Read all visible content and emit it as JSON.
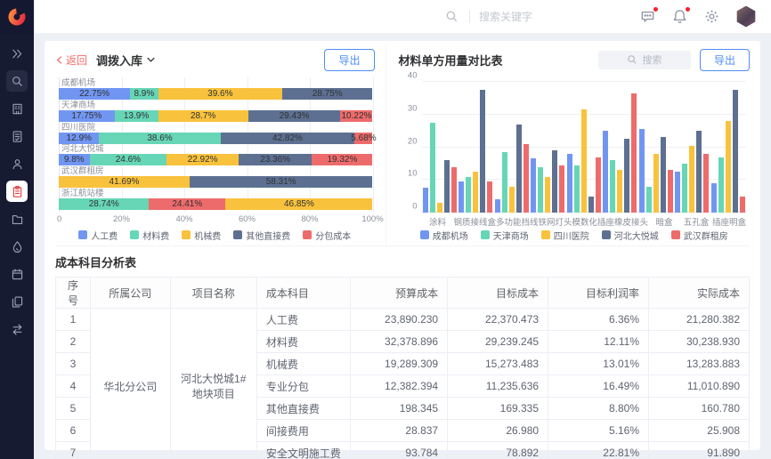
{
  "topbar": {
    "search_placeholder": "搜索关键字"
  },
  "sidebar": {
    "items": [
      {
        "name": "expand",
        "icon": "double-chevron-icon",
        "boxed": false,
        "active": false
      },
      {
        "name": "search",
        "icon": "search-icon",
        "boxed": true,
        "active": false
      },
      {
        "name": "company",
        "icon": "building-icon",
        "boxed": false,
        "active": false
      },
      {
        "name": "report",
        "icon": "document-icon",
        "boxed": false,
        "active": false
      },
      {
        "name": "member",
        "icon": "user-icon",
        "boxed": false,
        "active": false
      },
      {
        "name": "cost",
        "icon": "clipboard-icon",
        "boxed": false,
        "active": true
      },
      {
        "name": "folder",
        "icon": "folder-icon",
        "boxed": false,
        "active": false
      },
      {
        "name": "material",
        "icon": "drop-icon",
        "boxed": false,
        "active": false
      },
      {
        "name": "schedule",
        "icon": "calendar-icon",
        "boxed": false,
        "active": false
      },
      {
        "name": "docs",
        "icon": "copy-icon",
        "boxed": false,
        "active": false
      },
      {
        "name": "transfer",
        "icon": "swap-icon",
        "boxed": false,
        "active": false
      }
    ]
  },
  "transfer_panel": {
    "back_label": "返回",
    "title": "调拨入库",
    "export_label": "导出"
  },
  "material_panel": {
    "title": "材料单方用量对比表",
    "search_placeholder": "搜索",
    "export_label": "导出"
  },
  "colors": {
    "人工费": "#7196f2",
    "材料费": "#66d6b6",
    "机械费": "#f9c23c",
    "其他直接费": "#5d7092",
    "分包成本": "#ee6b6b",
    "成都机场": "#7196f2",
    "天津商场": "#66d6b6",
    "四川医院": "#f9c23c",
    "河北大悦城": "#5d7092",
    "武汉群租房": "#ee6b6b"
  },
  "chart_data": [
    {
      "type": "bar",
      "orientation": "horizontal-stacked",
      "title": "调拨入库",
      "xlim": [
        0,
        100
      ],
      "x_ticks": [
        "0",
        "20%",
        "40%",
        "60%",
        "80%",
        "100%"
      ],
      "legend": [
        "人工费",
        "材料费",
        "机械费",
        "其他直接费",
        "分包成本"
      ],
      "categories": [
        "成都机场",
        "天津商场",
        "四川医院",
        "河北大悦城",
        "武汉群租房",
        "浙江航站楼"
      ],
      "rows": [
        {
          "category": "成都机场",
          "segments": [
            {
              "series": "人工费",
              "value": 22.75,
              "label": "22.75%"
            },
            {
              "series": "材料费",
              "value": 8.9,
              "label": "8.9%"
            },
            {
              "series": "机械费",
              "value": 39.6,
              "label": "39.6%"
            },
            {
              "series": "其他直接费",
              "value": 28.75,
              "label": "28.75%"
            }
          ]
        },
        {
          "category": "天津商场",
          "segments": [
            {
              "series": "人工费",
              "value": 17.75,
              "label": "17.75%"
            },
            {
              "series": "材料费",
              "value": 13.9,
              "label": "13.9%"
            },
            {
              "series": "机械费",
              "value": 28.7,
              "label": "28.7%"
            },
            {
              "series": "其他直接费",
              "value": 29.43,
              "label": "29.43%"
            },
            {
              "series": "分包成本",
              "value": 10.22,
              "label": "10.22%"
            }
          ]
        },
        {
          "category": "四川医院",
          "segments": [
            {
              "series": "人工费",
              "value": 12.9,
              "label": "12.9%"
            },
            {
              "series": "材料费",
              "value": 38.6,
              "label": "38.6%"
            },
            {
              "series": "其他直接费",
              "value": 42.82,
              "label": "42.82%"
            },
            {
              "series": "分包成本",
              "value": 5.68,
              "label": "5.68%"
            }
          ]
        },
        {
          "category": "河北大悦城",
          "segments": [
            {
              "series": "人工费",
              "value": 9.8,
              "label": "9.8%"
            },
            {
              "series": "材料费",
              "value": 24.6,
              "label": "24.6%"
            },
            {
              "series": "机械费",
              "value": 22.92,
              "label": "22.92%"
            },
            {
              "series": "其他直接费",
              "value": 23.36,
              "label": "23.36%"
            },
            {
              "series": "分包成本",
              "value": 19.32,
              "label": "19.32%"
            }
          ]
        },
        {
          "category": "武汉群租房",
          "segments": [
            {
              "series": "机械费",
              "value": 41.69,
              "label": "41.69%"
            },
            {
              "series": "其他直接费",
              "value": 58.31,
              "label": "58.31%"
            }
          ]
        },
        {
          "category": "浙江航站楼",
          "segments": [
            {
              "series": "材料费",
              "value": 28.74,
              "label": "28.74%"
            },
            {
              "series": "分包成本",
              "value": 24.41,
              "label": "24.41%"
            },
            {
              "series": "机械费",
              "value": 46.85,
              "label": "46.85%"
            }
          ]
        }
      ]
    },
    {
      "type": "bar",
      "orientation": "vertical-grouped",
      "title": "材料单方用量对比表",
      "ylim": [
        0,
        40
      ],
      "y_ticks": [
        0,
        10,
        20,
        30,
        40
      ],
      "legend": [
        "成都机场",
        "天津商场",
        "四川医院",
        "河北大悦城",
        "武汉群租房"
      ],
      "categories": [
        "涂料",
        "钢质接线盒",
        "多功能挡线",
        "铁网灯头",
        "模数化插座",
        "橡皮接头",
        "暗盒",
        "五孔盒",
        "插座明盒"
      ],
      "series": [
        {
          "name": "成都机场",
          "values": [
            7.5,
            9.5,
            4,
            16.5,
            18,
            25,
            25.5,
            12.5,
            9
          ]
        },
        {
          "name": "天津商场",
          "values": [
            27.5,
            11,
            18.5,
            14,
            14.5,
            16,
            8,
            15,
            17
          ]
        },
        {
          "name": "四川医院",
          "values": [
            3,
            12.5,
            8,
            11,
            31.5,
            13,
            18,
            20.5,
            28
          ]
        },
        {
          "name": "河北大悦城",
          "values": [
            16,
            37.5,
            27,
            19,
            5,
            22.5,
            23,
            25,
            37.5
          ]
        },
        {
          "name": "武汉群租房",
          "values": [
            14,
            9.5,
            21,
            14.5,
            17,
            36.5,
            13,
            18,
            5
          ]
        }
      ]
    }
  ],
  "cost_table": {
    "title": "成本科目分析表",
    "columns": [
      "序号",
      "所属公司",
      "项目名称",
      "成本科目",
      "预算成本",
      "目标成本",
      "目标利润率",
      "实际成本"
    ],
    "company": "华北分公司",
    "project": "河北大悦城1#地块项目",
    "rows": [
      {
        "no": "1",
        "subject": "人工费",
        "budget": "23,890.230",
        "target": "22,370.473",
        "margin": "6.36%",
        "actual": "21,280.382"
      },
      {
        "no": "2",
        "subject": "材料费",
        "budget": "32,378.896",
        "target": "29,239.245",
        "margin": "12.11%",
        "actual": "30,238.930"
      },
      {
        "no": "3",
        "subject": "机械费",
        "budget": "19,289.309",
        "target": "15,273.483",
        "margin": "13.01%",
        "actual": "13,283.883"
      },
      {
        "no": "4",
        "subject": "专业分包",
        "budget": "12,382.394",
        "target": "11,235.636",
        "margin": "16.49%",
        "actual": "11,010.890"
      },
      {
        "no": "5",
        "subject": "其他直接费",
        "budget": "198.345",
        "target": "169.335",
        "margin": "8.80%",
        "actual": "160.780"
      },
      {
        "no": "6",
        "subject": "间接费用",
        "budget": "28.837",
        "target": "26.980",
        "margin": "5.16%",
        "actual": "25.908"
      },
      {
        "no": "7",
        "subject": "安全文明施工费",
        "budget": "93.784",
        "target": "78.892",
        "margin": "22.81%",
        "actual": "91.890"
      }
    ]
  }
}
